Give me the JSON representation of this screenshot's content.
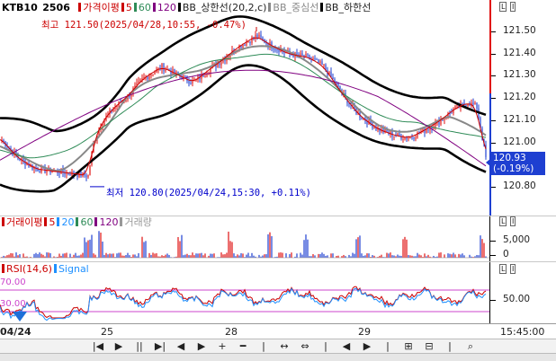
{
  "main_panel": {
    "symbol": "KTB10",
    "contract": "2506",
    "legend_items": [
      {
        "label": "가격이평",
        "color": "#cc0000"
      },
      {
        "label": "5",
        "color": "#cc0000"
      },
      {
        "label": "60",
        "color": "#2e8b57"
      },
      {
        "label": "120",
        "color": "#800080"
      },
      {
        "label": "BB_상한선(20,2,c)",
        "color": "#000000"
      },
      {
        "label": "BB_중심선",
        "color": "#888888"
      },
      {
        "label": "BB_하한선",
        "color": "#000000"
      }
    ],
    "high_label": "최고 121.50(2025/04/28,10:55, -0.47%)",
    "low_label": "최저 120.80(2025/04/24,15:30, +0.11%)",
    "y_ticks": [
      "121.50",
      "121.40",
      "121.30",
      "121.20",
      "121.10",
      "121.00",
      "120.90",
      "120.80"
    ],
    "current_price": "120.93",
    "current_change": "(-0.19%)"
  },
  "volume_panel": {
    "legend_items": [
      {
        "label": "거래이평",
        "color": "#cc0000"
      },
      {
        "label": "5",
        "color": "#cc0000"
      },
      {
        "label": "20",
        "color": "#1e90ff"
      },
      {
        "label": "60",
        "color": "#2e8b57"
      },
      {
        "label": "120",
        "color": "#800080"
      },
      {
        "label": "거래량",
        "color": "#999999"
      }
    ],
    "y_ticks": [
      "5,000",
      "0"
    ]
  },
  "rsi_panel": {
    "legend_items": [
      {
        "label": "RSI(14,6)",
        "color": "#cc0000"
      },
      {
        "label": "Signal",
        "color": "#1e90ff"
      }
    ],
    "level_upper": "70.00",
    "level_lower": "30.00",
    "y_ticks": [
      "50.00"
    ]
  },
  "x_axis": {
    "labels": [
      "04/24",
      "25",
      "28",
      "29"
    ],
    "time": "15:45:00"
  },
  "toolbar": {
    "buttons": [
      "|◀",
      "▶",
      "||",
      "▶|",
      "◀",
      "▶",
      "+",
      "━",
      "|",
      "↔",
      "⇔",
      "|",
      "◀",
      "▶",
      "|",
      "⊞",
      "⊟",
      "|",
      "⌕"
    ]
  },
  "panel_buttons": {
    "main": [
      "L",
      "I"
    ],
    "volume": [
      "L",
      "I"
    ],
    "rsi": [
      "L",
      "I"
    ]
  },
  "colors": {
    "up": "#e01010",
    "down": "#1e3fd1",
    "bb": "#000000",
    "ma60": "#2e8b57",
    "ma120": "#800080",
    "mid": "#888888"
  }
}
